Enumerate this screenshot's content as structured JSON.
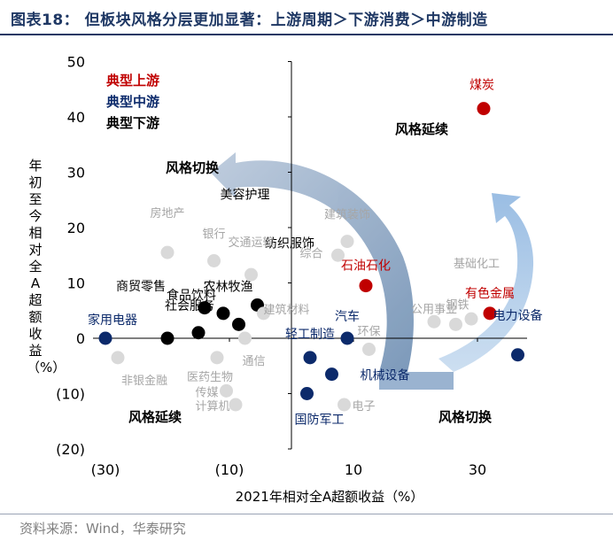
{
  "title": "图表18： 但板块风格分层更加显著：上游周期＞下游消费＞中游制造",
  "source": "资料来源：Wind，华泰研究",
  "chart_data": {
    "type": "scatter",
    "xlabel": "2021年相对全A超额收益（%）",
    "ylabel": "年初至今相对全A超额收益（%）",
    "xlim": [
      -32,
      38
    ],
    "ylim": [
      -20,
      50
    ],
    "x_ticks": [
      {
        "value": -30,
        "label": "(30)"
      },
      {
        "value": -10,
        "label": "(10)"
      },
      {
        "value": 10,
        "label": "10"
      },
      {
        "value": 30,
        "label": "30"
      }
    ],
    "y_ticks": [
      {
        "value": 50,
        "label": "50"
      },
      {
        "value": 40,
        "label": "40"
      },
      {
        "value": 30,
        "label": "30"
      },
      {
        "value": 20,
        "label": "20"
      },
      {
        "value": 10,
        "label": "10"
      },
      {
        "value": 0,
        "label": "0"
      },
      {
        "value": -10,
        "label": "(10)"
      },
      {
        "value": -20,
        "label": "(20)"
      }
    ],
    "legend": [
      {
        "label": "典型上游",
        "color": "#c00000"
      },
      {
        "label": "典型中游",
        "color": "#0c2a6b"
      },
      {
        "label": "典型下游",
        "color": "#000000"
      }
    ],
    "quadrant_labels": [
      {
        "text": "风格延续",
        "x": 21,
        "y": 37
      },
      {
        "text": "风格切换",
        "x": -16,
        "y": 30
      },
      {
        "text": "风格延续",
        "x": -22,
        "y": -15
      },
      {
        "text": "风格切换",
        "x": 28,
        "y": -15
      }
    ],
    "series": [
      {
        "group": "upstream",
        "color": "#c00000",
        "points": [
          {
            "label": "煤炭",
            "x": 31,
            "y": 41.5
          },
          {
            "label": "石油石化",
            "x": 12,
            "y": 9.5
          },
          {
            "label": "有色金属",
            "x": 32,
            "y": 4.5
          }
        ]
      },
      {
        "group": "midstream",
        "color": "#0c2a6b",
        "points": [
          {
            "label": "家用电器",
            "x": -30,
            "y": 0
          },
          {
            "label": "汽车",
            "x": 9,
            "y": 0
          },
          {
            "label": "电力设备",
            "x": 36.5,
            "y": -3
          },
          {
            "label": "轻工制造",
            "x": 3,
            "y": -3.5
          },
          {
            "label": "机械设备",
            "x": 6.5,
            "y": -6.5
          },
          {
            "label": "国防军工",
            "x": 2.5,
            "y": -10
          }
        ]
      },
      {
        "group": "downstream",
        "color": "#000000",
        "points": [
          {
            "label": "商贸零售",
            "x": -20,
            "y": 0
          },
          {
            "label": "社会服务",
            "x": -15,
            "y": 1
          },
          {
            "label": "食品饮料",
            "x": -11,
            "y": 4.5
          },
          {
            "label": "农林牧渔",
            "x": -8.5,
            "y": 2.5
          },
          {
            "label": "美容护理",
            "x": -5.5,
            "y": 6
          },
          {
            "label": "纺织服饰",
            "x": -14,
            "y": 5.5
          }
        ]
      },
      {
        "group": "other",
        "color": "#d9d9d9",
        "points": [
          {
            "label": "房地产",
            "x": -20,
            "y": 15.5
          },
          {
            "label": "银行",
            "x": -12.5,
            "y": 14
          },
          {
            "label": "交通运输",
            "x": -6.5,
            "y": 11.5
          },
          {
            "label": "建筑材料",
            "x": -4.5,
            "y": 4.5
          },
          {
            "label": "建筑装饰",
            "x": 9,
            "y": 17.5
          },
          {
            "label": "综合",
            "x": 7.5,
            "y": 15
          },
          {
            "label": "环保",
            "x": 12.5,
            "y": -2
          },
          {
            "label": "公用事业",
            "x": 23,
            "y": 3
          },
          {
            "label": "钢铁",
            "x": 26.5,
            "y": 2.5
          },
          {
            "label": "基础化工",
            "x": 29,
            "y": 3.5
          },
          {
            "label": "非银金融",
            "x": -28,
            "y": -3.5
          },
          {
            "label": "医药生物",
            "x": -12,
            "y": -3.5
          },
          {
            "label": "通信",
            "x": -7.5,
            "y": 0
          },
          {
            "label": "传媒",
            "x": -10.5,
            "y": -9.5
          },
          {
            "label": "计算机",
            "x": -9,
            "y": -12
          },
          {
            "label": "电子",
            "x": 8.5,
            "y": -12
          }
        ]
      }
    ]
  }
}
